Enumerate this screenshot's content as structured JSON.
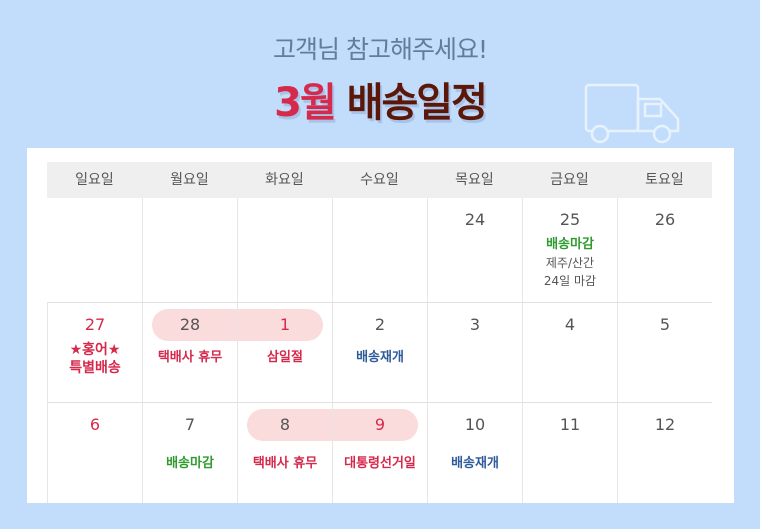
{
  "header": {
    "subtitle": "고객님 참고해주세요!",
    "month": "3월",
    "title": "배송일정"
  },
  "weekdays": [
    "일요일",
    "월요일",
    "화요일",
    "수요일",
    "목요일",
    "금요일",
    "토요일"
  ],
  "rows": [
    [
      {
        "day": "",
        "events": []
      },
      {
        "day": "",
        "events": []
      },
      {
        "day": "",
        "events": []
      },
      {
        "day": "",
        "events": []
      },
      {
        "day": "24",
        "events": []
      },
      {
        "day": "25",
        "events": [
          {
            "text": "배송마감",
            "color": "green"
          }
        ],
        "note": "제주/산간 24일 마감"
      },
      {
        "day": "26",
        "events": []
      }
    ],
    [
      {
        "day": "27",
        "red": true,
        "events": [
          {
            "text": "★홍어★ 특별배송",
            "color": "red"
          }
        ]
      },
      {
        "day": "28",
        "events": [
          {
            "text": "택배사 휴무",
            "color": "red"
          }
        ]
      },
      {
        "day": "1",
        "red": true,
        "events": [
          {
            "text": "삼일절",
            "color": "red"
          }
        ]
      },
      {
        "day": "2",
        "events": [
          {
            "text": "배송재개",
            "color": "blue"
          }
        ]
      },
      {
        "day": "3",
        "events": []
      },
      {
        "day": "4",
        "events": []
      },
      {
        "day": "5",
        "events": []
      }
    ],
    [
      {
        "day": "6",
        "red": true,
        "events": []
      },
      {
        "day": "7",
        "events": [
          {
            "text": "배송마감",
            "color": "green"
          }
        ]
      },
      {
        "day": "8",
        "events": [
          {
            "text": "택배사 휴무",
            "color": "red"
          }
        ]
      },
      {
        "day": "9",
        "red": true,
        "events": [
          {
            "text": "대통령선거일",
            "color": "red"
          }
        ]
      },
      {
        "day": "10",
        "events": [
          {
            "text": "배송재개",
            "color": "blue"
          }
        ]
      },
      {
        "day": "11",
        "events": []
      },
      {
        "day": "12",
        "events": []
      }
    ]
  ],
  "colors": {
    "red": "#d62a4c",
    "green": "#2f9a2f",
    "blue": "#2f5b9b",
    "highlight": "#fadcdc"
  }
}
